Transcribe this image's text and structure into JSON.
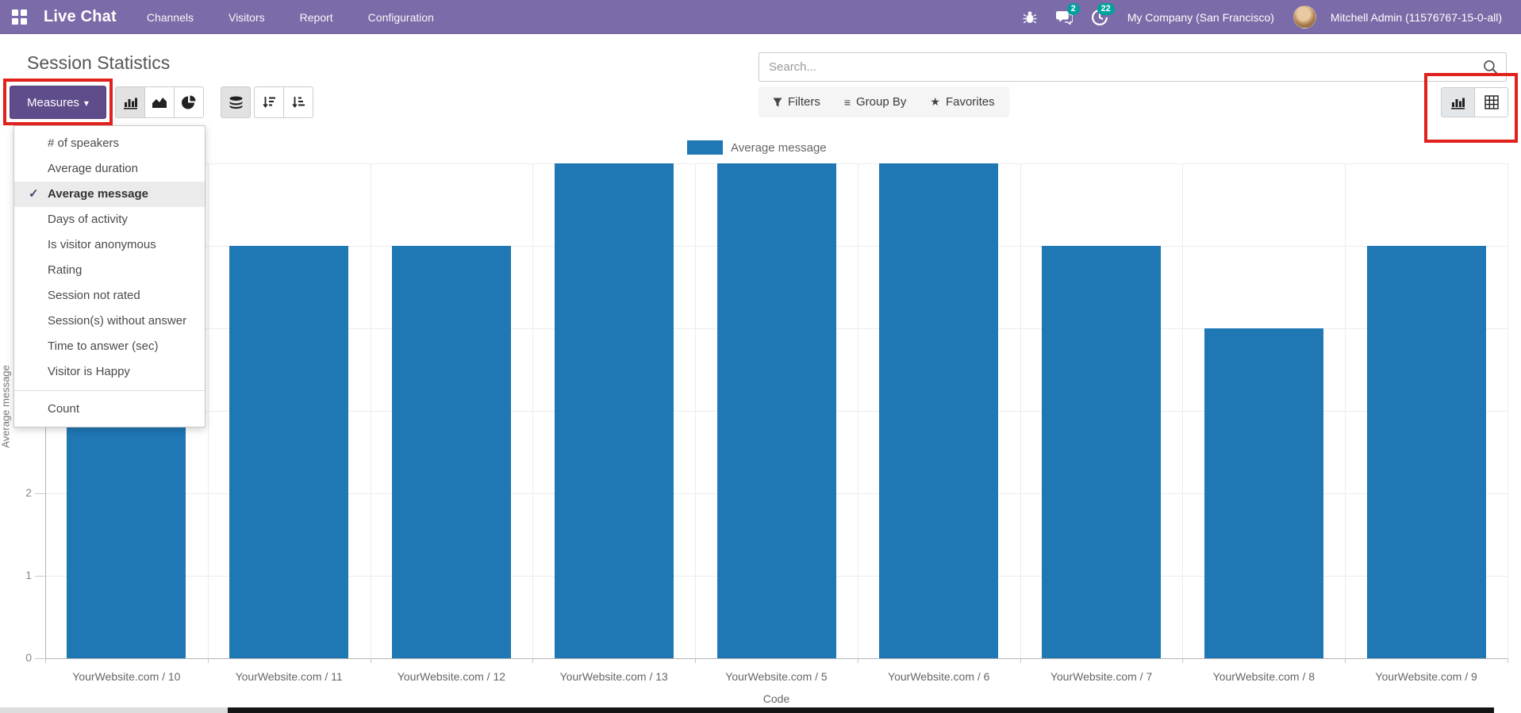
{
  "topbar": {
    "brand": "Live Chat",
    "menus": [
      "Channels",
      "Visitors",
      "Report",
      "Configuration"
    ],
    "messages_badge": "2",
    "activities_badge": "22",
    "company": "My Company (San Francisco)",
    "user": "Mitchell Admin (11576767-15-0-all)"
  },
  "header": {
    "title": "Session Statistics",
    "measures_label": "Measures",
    "search_placeholder": "Search...",
    "filters_label": "Filters",
    "group_by_label": "Group By",
    "favorites_label": "Favorites"
  },
  "icons": {
    "caret_down": "▾",
    "group_by_glyph": "≡",
    "favorites_glyph": "★",
    "check_glyph": "✓"
  },
  "measures_menu": {
    "items": [
      {
        "label": "# of speakers",
        "checked": false
      },
      {
        "label": "Average duration",
        "checked": false
      },
      {
        "label": "Average message",
        "checked": true
      },
      {
        "label": "Days of activity",
        "checked": false
      },
      {
        "label": "Is visitor anonymous",
        "checked": false
      },
      {
        "label": "Rating",
        "checked": false
      },
      {
        "label": "Session not rated",
        "checked": false
      },
      {
        "label": "Session(s) without answer",
        "checked": false
      },
      {
        "label": "Time to answer (sec)",
        "checked": false
      },
      {
        "label": "Visitor is Happy",
        "checked": false
      }
    ],
    "count_label": "Count"
  },
  "chart_data": {
    "type": "bar",
    "series_name": "Average message",
    "categories": [
      "YourWebsite.com / 10",
      "YourWebsite.com / 11",
      "YourWebsite.com / 12",
      "YourWebsite.com / 13",
      "YourWebsite.com / 5",
      "YourWebsite.com / 6",
      "YourWebsite.com / 7",
      "YourWebsite.com / 8",
      "YourWebsite.com / 9"
    ],
    "values": [
      3,
      5,
      5,
      6,
      6,
      6,
      5,
      4,
      5
    ],
    "xlabel": "Code",
    "ylabel": "Average message",
    "ylim": [
      0,
      6
    ],
    "yticks": [
      0,
      1,
      2,
      3,
      4,
      5,
      6
    ],
    "bar_color": "#1f77b4",
    "grid": true,
    "legend_position": "top"
  },
  "colors": {
    "topbar_purple": "#7b6ba8",
    "button_purple": "#5f4d8b",
    "annotation_red": "#e0211c",
    "badge_teal": "#00a09d",
    "bar_blue": "#1f77b4"
  }
}
